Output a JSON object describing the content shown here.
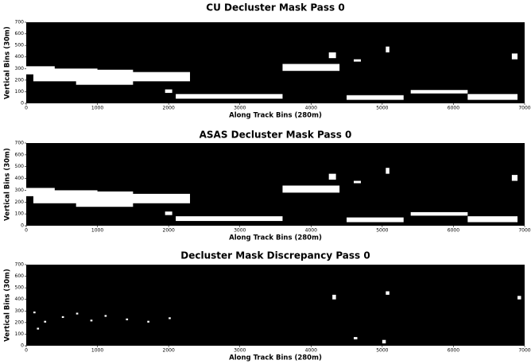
{
  "chart_data": [
    {
      "type": "mask",
      "title": "CU Decluster Mask Pass 0",
      "xlabel": "Along Track Bins (280m)",
      "ylabel": "Vertical Bins (30m)",
      "xlim": [
        0,
        7000
      ],
      "ylim": [
        0,
        700
      ],
      "xticks": [
        0,
        1000,
        2000,
        3000,
        4000,
        5000,
        6000,
        7000
      ],
      "yticks": [
        0,
        100,
        200,
        300,
        400,
        500,
        600,
        700
      ],
      "background": "#000000",
      "color": "#ffffff",
      "regions": [
        [
          0,
          400,
          250,
          320
        ],
        [
          100,
          1000,
          190,
          300
        ],
        [
          700,
          1500,
          160,
          290
        ],
        [
          1300,
          2300,
          190,
          270
        ],
        [
          1950,
          2050,
          90,
          120
        ],
        [
          2100,
          3600,
          40,
          80
        ],
        [
          3600,
          4400,
          280,
          340
        ],
        [
          4250,
          4350,
          390,
          440
        ],
        [
          4600,
          4700,
          360,
          380
        ],
        [
          5050,
          5100,
          440,
          490
        ],
        [
          4500,
          5300,
          30,
          70
        ],
        [
          5400,
          6200,
          85,
          115
        ],
        [
          6200,
          6900,
          30,
          80
        ],
        [
          6820,
          6900,
          380,
          430
        ]
      ]
    },
    {
      "type": "mask",
      "title": "ASAS Decluster Mask Pass 0",
      "xlabel": "Along Track Bins (280m)",
      "ylabel": "Vertical Bins (30m)",
      "xlim": [
        0,
        7000
      ],
      "ylim": [
        0,
        700
      ],
      "xticks": [
        0,
        1000,
        2000,
        3000,
        4000,
        5000,
        6000,
        7000
      ],
      "yticks": [
        0,
        100,
        200,
        300,
        400,
        500,
        600,
        700
      ],
      "background": "#000000",
      "color": "#ffffff",
      "regions": [
        [
          0,
          400,
          250,
          320
        ],
        [
          100,
          1000,
          190,
          300
        ],
        [
          700,
          1500,
          160,
          290
        ],
        [
          1300,
          2300,
          190,
          270
        ],
        [
          1950,
          2050,
          90,
          120
        ],
        [
          2100,
          3600,
          40,
          80
        ],
        [
          3600,
          4400,
          280,
          340
        ],
        [
          4250,
          4350,
          390,
          440
        ],
        [
          4600,
          4700,
          360,
          380
        ],
        [
          5050,
          5100,
          440,
          490
        ],
        [
          4500,
          5300,
          30,
          70
        ],
        [
          5400,
          6200,
          85,
          115
        ],
        [
          6200,
          6900,
          30,
          80
        ],
        [
          6820,
          6900,
          380,
          430
        ]
      ]
    },
    {
      "type": "mask",
      "title": "Decluster Mask Discrepancy Pass 0",
      "xlabel": "Along Track Bins (280m)",
      "ylabel": "Vertical Bins (30m)",
      "xlim": [
        0,
        7000
      ],
      "ylim": [
        0,
        700
      ],
      "xticks": [
        0,
        1000,
        2000,
        3000,
        4000,
        5000,
        6000,
        7000
      ],
      "yticks": [
        0,
        100,
        200,
        300,
        400,
        500,
        600,
        700
      ],
      "background": "#000000",
      "color": "#ffffff",
      "regions": [
        [
          100,
          130,
          280,
          295
        ],
        [
          250,
          280,
          200,
          215
        ],
        [
          500,
          530,
          240,
          255
        ],
        [
          700,
          730,
          270,
          285
        ],
        [
          900,
          930,
          210,
          225
        ],
        [
          1100,
          1130,
          250,
          265
        ],
        [
          1400,
          1430,
          220,
          235
        ],
        [
          1700,
          1730,
          200,
          215
        ],
        [
          2000,
          2030,
          230,
          245
        ],
        [
          150,
          180,
          140,
          155
        ],
        [
          4300,
          4350,
          400,
          440
        ],
        [
          4600,
          4650,
          55,
          75
        ],
        [
          5050,
          5100,
          440,
          470
        ],
        [
          5000,
          5050,
          20,
          50
        ],
        [
          6900,
          6950,
          400,
          430
        ]
      ]
    }
  ]
}
